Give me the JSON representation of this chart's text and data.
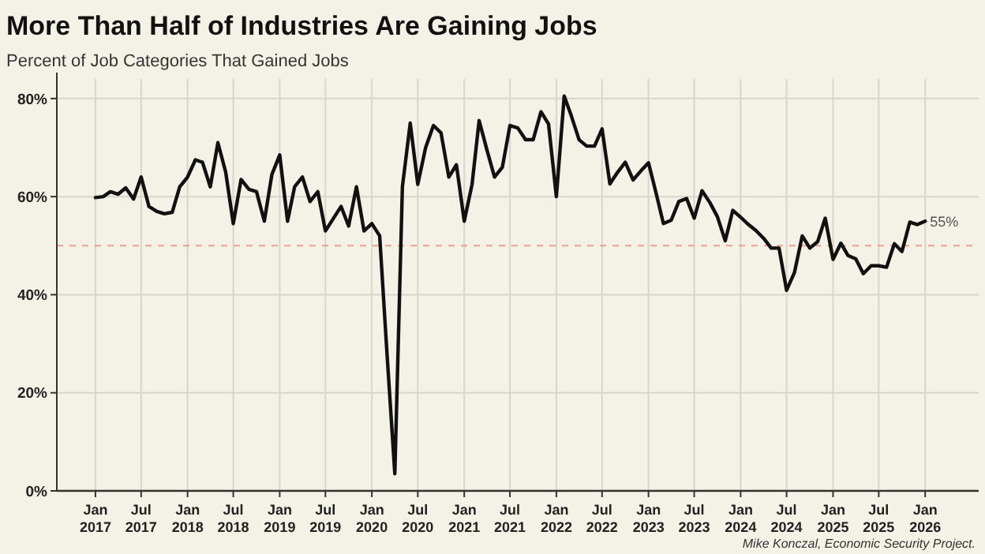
{
  "chart_data": {
    "type": "line",
    "title": "More Than Half of Industries Are Gaining Jobs",
    "subtitle": "Percent of Job Categories That Gained Jobs",
    "x": [
      "2017-01",
      "2017-02",
      "2017-03",
      "2017-04",
      "2017-05",
      "2017-06",
      "2017-07",
      "2017-08",
      "2017-09",
      "2017-10",
      "2017-11",
      "2017-12",
      "2018-01",
      "2018-02",
      "2018-03",
      "2018-04",
      "2018-05",
      "2018-06",
      "2018-07",
      "2018-08",
      "2018-09",
      "2018-10",
      "2018-11",
      "2018-12",
      "2019-01",
      "2019-02",
      "2019-03",
      "2019-04",
      "2019-05",
      "2019-06",
      "2019-07",
      "2019-08",
      "2019-09",
      "2019-10",
      "2019-11",
      "2019-12",
      "2020-01",
      "2020-02",
      "2020-03",
      "2020-04",
      "2020-05",
      "2020-06",
      "2020-07",
      "2020-08",
      "2020-09",
      "2020-10",
      "2020-11",
      "2020-12",
      "2021-01",
      "2021-02",
      "2021-03",
      "2021-04",
      "2021-05",
      "2021-06",
      "2021-07",
      "2021-08",
      "2021-09",
      "2021-10",
      "2021-11",
      "2021-12",
      "2022-01",
      "2022-02",
      "2022-03",
      "2022-04",
      "2022-05",
      "2022-06",
      "2022-07",
      "2022-08",
      "2022-09",
      "2022-10",
      "2022-11",
      "2022-12",
      "2023-01",
      "2023-02",
      "2023-03",
      "2023-04",
      "2023-05",
      "2023-06",
      "2023-07",
      "2023-08",
      "2023-09",
      "2023-10",
      "2023-11",
      "2023-12",
      "2024-01",
      "2024-02",
      "2024-03",
      "2024-04",
      "2024-05",
      "2024-06",
      "2024-07",
      "2024-08",
      "2024-09",
      "2024-10",
      "2024-11",
      "2024-12",
      "2025-01",
      "2025-02",
      "2025-03",
      "2025-04",
      "2025-05",
      "2025-06",
      "2025-07",
      "2025-08",
      "2025-09",
      "2025-10",
      "2025-11",
      "2025-12",
      "2026-01"
    ],
    "series": [
      {
        "color": "#111111",
        "values": [
          59.8,
          60,
          61,
          60.5,
          61.8,
          59.5,
          64,
          58,
          57,
          56.5,
          56.8,
          62,
          64,
          67.5,
          67,
          62,
          71,
          65,
          54.5,
          63.5,
          61.5,
          61,
          55,
          64.5,
          68.5,
          55,
          62,
          64,
          59,
          61,
          53,
          55.5,
          58,
          54,
          62,
          53,
          54.5,
          52,
          28,
          3.5,
          62,
          75,
          62.5,
          70,
          74.5,
          73,
          64,
          66.5,
          55,
          62.5,
          75.5,
          69.5,
          64,
          66,
          74.5,
          74,
          71.6,
          71.6,
          77.3,
          74.8,
          60,
          80.5,
          76.5,
          71.6,
          70.3,
          70.3,
          73.8,
          62.6,
          65,
          67,
          63.4,
          65.2,
          66.9,
          60.5,
          54.5,
          55.2,
          59,
          59.6,
          55.6,
          61.2,
          58.8,
          55.9,
          51,
          57.2,
          55.8,
          54.3,
          53.1,
          51.5,
          49.5,
          49.5,
          40.9,
          44.5,
          52,
          49.5,
          50.8,
          55.6,
          47.2,
          50.5,
          48,
          47.3,
          44.3,
          45.9,
          45.9,
          45.6,
          50.4,
          48.8,
          54.8,
          54.3,
          55
        ]
      }
    ],
    "xlim": [
      "2016-08",
      "2026-08"
    ],
    "xticks": [
      {
        "value": "2017-01",
        "label": "Jan 2017"
      },
      {
        "value": "2017-07",
        "label": "Jul 2017"
      },
      {
        "value": "2018-01",
        "label": "Jan 2018"
      },
      {
        "value": "2018-07",
        "label": "Jul 2018"
      },
      {
        "value": "2019-01",
        "label": "Jan 2019"
      },
      {
        "value": "2019-07",
        "label": "Jul 2019"
      },
      {
        "value": "2020-01",
        "label": "Jan 2020"
      },
      {
        "value": "2020-07",
        "label": "Jul 2020"
      },
      {
        "value": "2021-01",
        "label": "Jan 2021"
      },
      {
        "value": "2021-07",
        "label": "Jul 2021"
      },
      {
        "value": "2022-01",
        "label": "Jan 2022"
      },
      {
        "value": "2022-07",
        "label": "Jul 2022"
      },
      {
        "value": "2023-01",
        "label": "Jan 2023"
      },
      {
        "value": "2023-07",
        "label": "Jul 2023"
      },
      {
        "value": "2024-01",
        "label": "Jan 2024"
      },
      {
        "value": "2024-07",
        "label": "Jul 2024"
      },
      {
        "value": "2025-01",
        "label": "Jan 2025"
      },
      {
        "value": "2025-07",
        "label": "Jul 2025"
      },
      {
        "value": "2026-01",
        "label": "Jan 2026"
      }
    ],
    "ylim": [
      0,
      84
    ],
    "yticks": [
      {
        "value": 0,
        "label": "0%"
      },
      {
        "value": 20,
        "label": "20%"
      },
      {
        "value": 40,
        "label": "40%"
      },
      {
        "value": 60,
        "label": "60%"
      },
      {
        "value": 80,
        "label": "80%"
      }
    ],
    "grid": true,
    "ref_lines": [
      {
        "axis": "y",
        "value": 50,
        "color": "#e8a090",
        "line_style": "dashed"
      }
    ],
    "annotations": [
      {
        "text": "55%",
        "x": "2026-01",
        "y": 55
      },
      "Mike Konczal, Economic Security Project."
    ]
  }
}
